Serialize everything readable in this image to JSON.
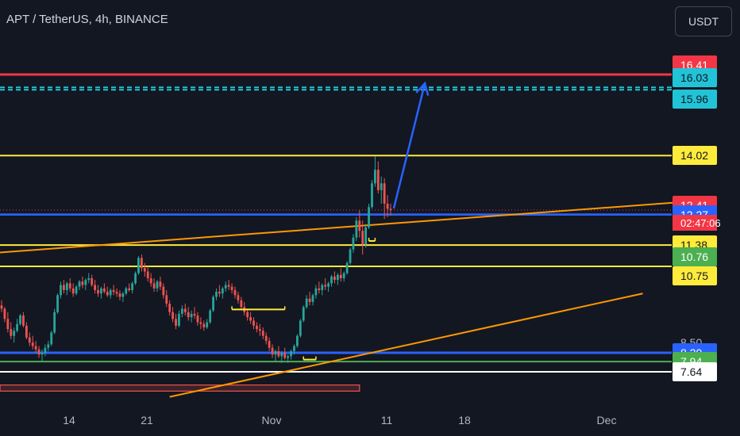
{
  "header": {
    "title": "APT / TetherUS, 4h, BINANCE",
    "currency_button": "USDT"
  },
  "colors": {
    "background": "#131722",
    "up": "#26a69a",
    "down": "#ef5350",
    "yellow_level": "#ffeb3b",
    "red_level": "#f23645",
    "cyan_level": "#22c3d6",
    "blue_level": "#2962ff",
    "orange_trend": "#ff9800",
    "arrow": "#2962ff"
  },
  "chart_data": {
    "type": "candlestick",
    "symbol": "APT / TetherUS",
    "interval": "4h",
    "exchange": "BINANCE",
    "x_tick_labels": [
      "14",
      "21",
      "Nov",
      "11",
      "18",
      "Dec"
    ],
    "price_levels": [
      {
        "value": 16.41,
        "label": "16.41",
        "bg": "#f23645",
        "fg": "#ffffff",
        "line": "solid",
        "line_color": "#f23645"
      },
      {
        "value": 16.03,
        "label": "16.03",
        "bg": "#22c3d6",
        "fg": "#131722",
        "line": "dashed",
        "line_color": "#22c3d6"
      },
      {
        "value": 15.96,
        "label": "15.96",
        "bg": "#22c3d6",
        "fg": "#131722",
        "line": "dashed",
        "line_color": "#22c3d6"
      },
      {
        "value": 14.02,
        "label": "14.02",
        "bg": "#ffeb3b",
        "fg": "#131722",
        "line": "solid",
        "line_color": "#ffeb3b"
      },
      {
        "value": 12.41,
        "label": "12.41",
        "bg": "#f23645",
        "fg": "#ffffff",
        "line": "dotted",
        "line_color": "#f23645"
      },
      {
        "value": 12.27,
        "label": "12.27",
        "bg": "#2962ff",
        "fg": "#ffffff",
        "line": "solid",
        "line_color": "#2962ff"
      },
      {
        "value": 11.38,
        "label": "11.38",
        "bg": "#ffeb3b",
        "fg": "#131722",
        "line": "solid",
        "line_color": "#ffeb3b"
      },
      {
        "value": 10.76,
        "label": "10.76",
        "bg": "#4caf50",
        "fg": "#ffffff",
        "line": "none",
        "line_color": "#4caf50"
      },
      {
        "value": 10.75,
        "label": "10.75",
        "bg": "#ffeb3b",
        "fg": "#131722",
        "line": "solid",
        "line_color": "#ffeb3b"
      },
      {
        "value": 8.5,
        "label": "8.50",
        "bg": "none",
        "fg": "#b2b5be",
        "line": "none",
        "line_color": "none"
      },
      {
        "value": 8.2,
        "label": "8.20",
        "bg": "#2962ff",
        "fg": "#ffffff",
        "line": "solid",
        "line_color": "#2962ff"
      },
      {
        "value": 7.94,
        "label": "7.94",
        "bg": "#4caf50",
        "fg": "#ffffff",
        "line": "solid",
        "line_color": "#4caf50"
      },
      {
        "value": 7.64,
        "label": "7.64",
        "bg": "#ffffff",
        "fg": "#131722",
        "line": "solid",
        "line_color": "#ffffff"
      }
    ],
    "current_price": 12.41,
    "countdown": "02:47:06",
    "candles_ohlc": [
      [
        9.6,
        9.75,
        9.4,
        9.5
      ],
      [
        9.5,
        9.55,
        9.1,
        9.2
      ],
      [
        9.2,
        9.4,
        8.8,
        8.9
      ],
      [
        8.9,
        9.1,
        8.6,
        8.7
      ],
      [
        8.7,
        8.95,
        8.5,
        8.85
      ],
      [
        8.85,
        9.2,
        8.8,
        9.05
      ],
      [
        9.05,
        9.35,
        9.0,
        9.3
      ],
      [
        9.3,
        9.4,
        8.95,
        9.0
      ],
      [
        9.0,
        9.1,
        8.6,
        8.65
      ],
      [
        8.65,
        8.8,
        8.4,
        8.5
      ],
      [
        8.5,
        8.7,
        8.3,
        8.4
      ],
      [
        8.4,
        8.55,
        8.2,
        8.3
      ],
      [
        8.3,
        8.4,
        8.05,
        8.15
      ],
      [
        8.15,
        8.3,
        7.95,
        8.2
      ],
      [
        8.2,
        8.45,
        8.1,
        8.35
      ],
      [
        8.35,
        8.55,
        8.25,
        8.45
      ],
      [
        8.45,
        8.85,
        8.4,
        8.8
      ],
      [
        8.8,
        9.5,
        8.75,
        9.4
      ],
      [
        9.4,
        9.95,
        9.35,
        9.9
      ],
      [
        9.9,
        10.3,
        9.8,
        10.2
      ],
      [
        10.2,
        10.35,
        9.95,
        10.05
      ],
      [
        10.05,
        10.3,
        9.9,
        10.25
      ],
      [
        10.25,
        10.4,
        10.0,
        10.1
      ],
      [
        10.1,
        10.25,
        9.85,
        9.95
      ],
      [
        9.95,
        10.2,
        9.9,
        10.15
      ],
      [
        10.15,
        10.35,
        10.05,
        10.3
      ],
      [
        10.3,
        10.45,
        10.1,
        10.2
      ],
      [
        10.2,
        10.4,
        10.05,
        10.35
      ],
      [
        10.35,
        10.55,
        10.25,
        10.4
      ],
      [
        10.4,
        10.5,
        10.15,
        10.2
      ],
      [
        10.2,
        10.35,
        9.95,
        10.05
      ],
      [
        10.05,
        10.2,
        9.85,
        9.95
      ],
      [
        9.95,
        10.15,
        9.8,
        10.1
      ],
      [
        10.1,
        10.25,
        9.95,
        10.0
      ],
      [
        10.0,
        10.15,
        9.85,
        9.9
      ],
      [
        9.9,
        10.1,
        9.8,
        10.05
      ],
      [
        10.05,
        10.2,
        9.9,
        10.0
      ],
      [
        10.0,
        10.1,
        9.85,
        9.95
      ],
      [
        9.95,
        10.05,
        9.75,
        9.85
      ],
      [
        9.85,
        10.0,
        9.7,
        9.95
      ],
      [
        9.95,
        10.15,
        9.9,
        10.1
      ],
      [
        10.1,
        10.25,
        10.0,
        10.05
      ],
      [
        10.05,
        10.3,
        9.95,
        10.25
      ],
      [
        10.25,
        10.6,
        10.2,
        10.55
      ],
      [
        10.55,
        11.05,
        10.5,
        11.0
      ],
      [
        11.0,
        11.1,
        10.6,
        10.7
      ],
      [
        10.7,
        10.85,
        10.45,
        10.6
      ],
      [
        10.6,
        10.75,
        10.3,
        10.4
      ],
      [
        10.4,
        10.55,
        10.15,
        10.25
      ],
      [
        10.25,
        10.4,
        10.0,
        10.1
      ],
      [
        10.1,
        10.35,
        10.0,
        10.3
      ],
      [
        10.3,
        10.45,
        10.05,
        10.15
      ],
      [
        10.15,
        10.25,
        9.8,
        9.9
      ],
      [
        9.9,
        10.05,
        9.55,
        9.65
      ],
      [
        9.65,
        9.75,
        9.3,
        9.4
      ],
      [
        9.4,
        9.55,
        9.1,
        9.2
      ],
      [
        9.2,
        9.35,
        8.9,
        9.0
      ],
      [
        9.0,
        9.45,
        8.95,
        9.35
      ],
      [
        9.35,
        9.6,
        9.25,
        9.5
      ],
      [
        9.5,
        9.65,
        9.3,
        9.4
      ],
      [
        9.4,
        9.55,
        9.15,
        9.25
      ],
      [
        9.25,
        9.45,
        9.1,
        9.35
      ],
      [
        9.35,
        9.55,
        9.2,
        9.3
      ],
      [
        9.3,
        9.4,
        9.0,
        9.1
      ],
      [
        9.1,
        9.25,
        8.9,
        9.05
      ],
      [
        9.05,
        9.15,
        8.85,
        8.95
      ],
      [
        8.95,
        9.2,
        8.9,
        9.1
      ],
      [
        9.1,
        9.5,
        9.05,
        9.45
      ],
      [
        9.45,
        9.9,
        9.4,
        9.85
      ],
      [
        9.85,
        10.1,
        9.75,
        10.0
      ],
      [
        10.0,
        10.2,
        9.85,
        9.95
      ],
      [
        9.95,
        10.15,
        9.8,
        10.1
      ],
      [
        10.1,
        10.3,
        10.0,
        10.2
      ],
      [
        10.2,
        10.35,
        10.05,
        10.15
      ],
      [
        10.15,
        10.25,
        9.95,
        10.05
      ],
      [
        10.05,
        10.15,
        9.8,
        9.9
      ],
      [
        9.9,
        10.0,
        9.65,
        9.75
      ],
      [
        9.75,
        9.85,
        9.45,
        9.55
      ],
      [
        9.55,
        9.7,
        9.3,
        9.4
      ],
      [
        9.4,
        9.5,
        9.15,
        9.25
      ],
      [
        9.25,
        9.4,
        9.05,
        9.15
      ],
      [
        9.15,
        9.25,
        8.9,
        9.0
      ],
      [
        9.0,
        9.1,
        8.8,
        8.9
      ],
      [
        8.9,
        9.05,
        8.7,
        8.85
      ],
      [
        8.85,
        8.95,
        8.6,
        8.7
      ],
      [
        8.7,
        8.8,
        8.45,
        8.55
      ],
      [
        8.55,
        8.65,
        8.25,
        8.35
      ],
      [
        8.35,
        8.45,
        8.05,
        8.15
      ],
      [
        8.15,
        8.3,
        7.95,
        8.25
      ],
      [
        8.25,
        8.4,
        8.05,
        8.1
      ],
      [
        8.1,
        8.25,
        7.9,
        8.2
      ],
      [
        8.2,
        8.35,
        8.0,
        8.05
      ],
      [
        8.05,
        8.15,
        7.9,
        8.1
      ],
      [
        8.1,
        8.3,
        8.0,
        8.25
      ],
      [
        8.25,
        8.45,
        8.15,
        8.4
      ],
      [
        8.4,
        8.75,
        8.35,
        8.7
      ],
      [
        8.7,
        9.2,
        8.65,
        9.15
      ],
      [
        9.15,
        9.6,
        9.1,
        9.55
      ],
      [
        9.55,
        9.9,
        9.5,
        9.8
      ],
      [
        9.8,
        10.0,
        9.6,
        9.7
      ],
      [
        9.7,
        9.95,
        9.6,
        9.9
      ],
      [
        9.9,
        10.2,
        9.8,
        10.1
      ],
      [
        10.1,
        10.3,
        9.95,
        10.05
      ],
      [
        10.05,
        10.25,
        9.9,
        10.2
      ],
      [
        10.2,
        10.4,
        10.05,
        10.15
      ],
      [
        10.15,
        10.3,
        10.0,
        10.25
      ],
      [
        10.25,
        10.5,
        10.15,
        10.45
      ],
      [
        10.45,
        10.6,
        10.25,
        10.35
      ],
      [
        10.35,
        10.55,
        10.2,
        10.5
      ],
      [
        10.5,
        10.7,
        10.3,
        10.4
      ],
      [
        10.4,
        10.6,
        10.3,
        10.55
      ],
      [
        10.55,
        10.9,
        10.5,
        10.85
      ],
      [
        10.85,
        11.3,
        10.8,
        11.25
      ],
      [
        11.25,
        11.7,
        11.15,
        11.6
      ],
      [
        11.6,
        12.2,
        11.5,
        12.1
      ],
      [
        12.1,
        12.4,
        11.6,
        11.8
      ],
      [
        11.8,
        12.1,
        11.1,
        11.4
      ],
      [
        11.4,
        12.0,
        11.3,
        11.9
      ],
      [
        11.9,
        12.6,
        11.85,
        12.5
      ],
      [
        12.5,
        13.3,
        12.45,
        13.2
      ],
      [
        13.2,
        14.0,
        13.1,
        13.6
      ],
      [
        13.6,
        13.85,
        12.9,
        13.0
      ],
      [
        13.0,
        13.4,
        12.6,
        13.2
      ],
      [
        13.2,
        13.35,
        12.15,
        12.6
      ],
      [
        12.6,
        12.85,
        12.2,
        12.45
      ],
      [
        12.45,
        12.6,
        12.25,
        12.41
      ]
    ],
    "annotations": {
      "arrow": {
        "from_candle": 126,
        "from_price": 12.46,
        "to_candle": 136,
        "to_price": 16.15
      },
      "trendlines": [
        {
          "from_candle": -2,
          "from_price": 11.15,
          "to_candle": 219,
          "to_price": 12.65
        },
        {
          "from_candle": 54,
          "from_price": 6.9,
          "to_candle": 206,
          "to_price": 9.95
        }
      ],
      "range_lines": [
        {
          "from_candle": 74,
          "to_candle": 91,
          "price": 9.48
        },
        {
          "from_candle": 97,
          "to_candle": 101,
          "price": 8.0
        },
        {
          "from_candle": 118,
          "to_candle": 120,
          "price": 11.5
        }
      ],
      "bottom_zone": {
        "from_candle": -2,
        "to_candle": 115,
        "top_price": 7.25,
        "bottom_price": 7.07
      }
    }
  }
}
